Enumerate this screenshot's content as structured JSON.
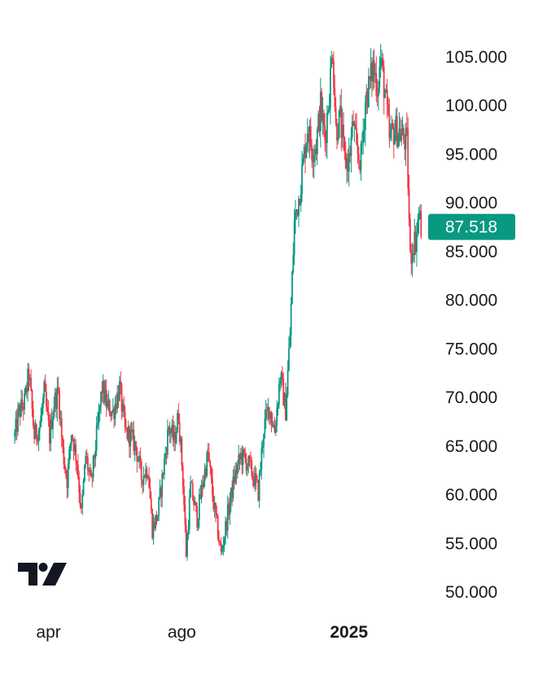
{
  "chart_data": {
    "type": "candlestick",
    "y_axis": {
      "ticks": [
        "105.000",
        "100.000",
        "95.000",
        "90.000",
        "85.000",
        "80.000",
        "75.000",
        "70.000",
        "65.000",
        "60.000",
        "55.000",
        "50.000"
      ],
      "tick_values": [
        105000,
        100000,
        95000,
        90000,
        85000,
        80000,
        75000,
        70000,
        65000,
        60000,
        55000,
        50000
      ],
      "range": [
        48500,
        110000
      ]
    },
    "x_axis": {
      "ticks": [
        {
          "label": "apr",
          "bold": false,
          "date": "2024-04-01"
        },
        {
          "label": "ago",
          "bold": false,
          "date": "2024-08-01"
        },
        {
          "label": "2025",
          "bold": true,
          "date": "2025-01-01"
        }
      ],
      "range": [
        "2024-03-01",
        "2025-03-10"
      ]
    },
    "last_price": {
      "label": "87.518",
      "value": 87518,
      "color": "#089981"
    },
    "colors": {
      "up": "#089981",
      "down": "#f23645"
    },
    "closes": [
      [
        "2024-03-01",
        66000
      ],
      [
        "2024-03-05",
        68500
      ],
      [
        "2024-03-10",
        69500
      ],
      [
        "2024-03-14",
        72500
      ],
      [
        "2024-03-19",
        66000
      ],
      [
        "2024-03-24",
        67000
      ],
      [
        "2024-03-28",
        70500
      ],
      [
        "2024-04-02",
        66000
      ],
      [
        "2024-04-06",
        69500
      ],
      [
        "2024-04-10",
        70500
      ],
      [
        "2024-04-14",
        64500
      ],
      [
        "2024-04-18",
        61500
      ],
      [
        "2024-04-22",
        66500
      ],
      [
        "2024-04-27",
        63500
      ],
      [
        "2024-05-01",
        58000
      ],
      [
        "2024-05-05",
        64000
      ],
      [
        "2024-05-10",
        61000
      ],
      [
        "2024-05-15",
        66000
      ],
      [
        "2024-05-20",
        71000
      ],
      [
        "2024-05-25",
        69000
      ],
      [
        "2024-05-30",
        68500
      ],
      [
        "2024-06-05",
        71000
      ],
      [
        "2024-06-10",
        66500
      ],
      [
        "2024-06-15",
        66000
      ],
      [
        "2024-06-20",
        64900
      ],
      [
        "2024-06-25",
        61800
      ],
      [
        "2024-07-01",
        62800
      ],
      [
        "2024-07-05",
        56500
      ],
      [
        "2024-07-10",
        58000
      ],
      [
        "2024-07-15",
        62500
      ],
      [
        "2024-07-20",
        67000
      ],
      [
        "2024-07-25",
        65500
      ],
      [
        "2024-07-29",
        68300
      ],
      [
        "2024-08-02",
        61500
      ],
      [
        "2024-08-05",
        54000
      ],
      [
        "2024-08-09",
        60800
      ],
      [
        "2024-08-15",
        57600
      ],
      [
        "2024-08-20",
        61200
      ],
      [
        "2024-08-25",
        64200
      ],
      [
        "2024-08-30",
        59100
      ],
      [
        "2024-09-06",
        53900
      ],
      [
        "2024-09-12",
        58000
      ],
      [
        "2024-09-18",
        61700
      ],
      [
        "2024-09-24",
        64000
      ],
      [
        "2024-09-30",
        63300
      ],
      [
        "2024-10-05",
        62100
      ],
      [
        "2024-10-10",
        60300
      ],
      [
        "2024-10-15",
        66900
      ],
      [
        "2024-10-20",
        69000
      ],
      [
        "2024-10-25",
        66600
      ],
      [
        "2024-10-30",
        72300
      ],
      [
        "2024-11-04",
        68700
      ],
      [
        "2024-11-08",
        76500
      ],
      [
        "2024-11-12",
        88000
      ],
      [
        "2024-11-16",
        90500
      ],
      [
        "2024-11-20",
        94000
      ],
      [
        "2024-11-24",
        97800
      ],
      [
        "2024-11-28",
        95600
      ],
      [
        "2024-12-02",
        96000
      ],
      [
        "2024-12-06",
        99900
      ],
      [
        "2024-12-10",
        96600
      ],
      [
        "2024-12-14",
        101400
      ],
      [
        "2024-12-17",
        106000
      ],
      [
        "2024-12-20",
        97600
      ],
      [
        "2024-12-24",
        98600
      ],
      [
        "2024-12-28",
        94300
      ],
      [
        "2025-01-01",
        94400
      ],
      [
        "2025-01-05",
        98300
      ],
      [
        "2025-01-08",
        95000
      ],
      [
        "2025-01-12",
        94500
      ],
      [
        "2025-01-16",
        100500
      ],
      [
        "2025-01-20",
        102300
      ],
      [
        "2025-01-23",
        104000
      ],
      [
        "2025-01-27",
        102000
      ],
      [
        "2025-01-30",
        104700
      ],
      [
        "2025-02-03",
        101300
      ],
      [
        "2025-02-07",
        96500
      ],
      [
        "2025-02-11",
        97400
      ],
      [
        "2025-02-15",
        97500
      ],
      [
        "2025-02-19",
        96700
      ],
      [
        "2025-02-23",
        96100
      ],
      [
        "2025-02-26",
        84300
      ],
      [
        "2025-03-01",
        86000
      ],
      [
        "2025-03-03",
        86200
      ],
      [
        "2025-03-06",
        89000
      ],
      [
        "2025-03-08",
        87518
      ]
    ]
  }
}
